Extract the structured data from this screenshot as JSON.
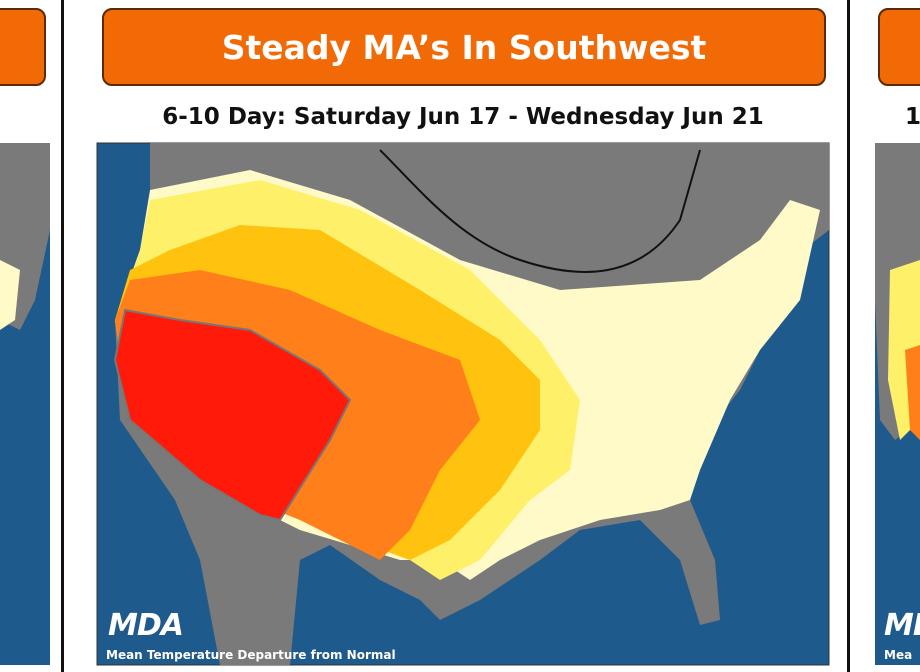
{
  "center_panel": {
    "title": "Steady MA’s In Southwest",
    "subtitle": "6-10 Day: Saturday Jun 17 - Wednesday Jun 21",
    "logo": "MDA",
    "caption": "Mean Temperature Departure from Normal"
  },
  "right_panel": {
    "subtitle": "1",
    "logo": "MDA",
    "caption": "Mea"
  }
}
